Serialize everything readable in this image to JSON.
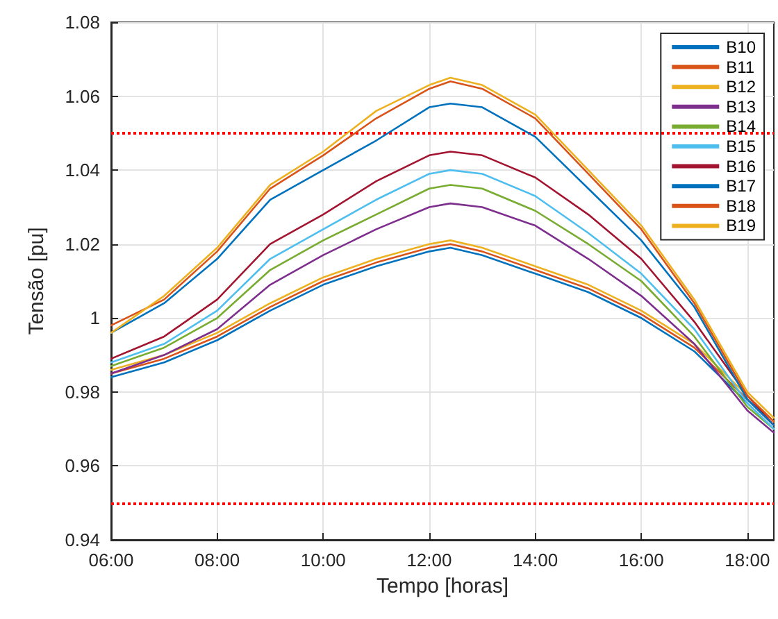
{
  "chart_data": {
    "type": "line",
    "xlabel": "Tempo [horas]",
    "ylabel": "Tensão [pu]",
    "x": [
      6,
      7,
      8,
      9,
      10,
      11,
      12,
      12.4,
      13,
      14,
      15,
      16,
      17,
      18,
      18.5
    ],
    "xlim": [
      6,
      18.5
    ],
    "xticks": [
      {
        "value": 6,
        "label": "06:00"
      },
      {
        "value": 8,
        "label": "08:00"
      },
      {
        "value": 10,
        "label": "10:00"
      },
      {
        "value": 12,
        "label": "12:00"
      },
      {
        "value": 14,
        "label": "14:00"
      },
      {
        "value": 16,
        "label": "16:00"
      },
      {
        "value": 18,
        "label": "18:00"
      }
    ],
    "ylim": [
      0.94,
      1.08
    ],
    "yticks": [
      0.94,
      0.96,
      0.98,
      1,
      1.02,
      1.04,
      1.06,
      1.08
    ],
    "series": [
      {
        "name": "B10",
        "color": "#0072bd",
        "values": [
          0.984,
          0.988,
          0.994,
          1.002,
          1.009,
          1.014,
          1.018,
          1.019,
          1.017,
          1.012,
          1.007,
          1.0,
          0.991,
          0.977,
          0.97
        ]
      },
      {
        "name": "B11",
        "color": "#d95319",
        "values": [
          0.985,
          0.989,
          0.995,
          1.003,
          1.01,
          1.015,
          1.019,
          1.02,
          1.018,
          1.013,
          1.008,
          1.001,
          0.992,
          0.978,
          0.971
        ]
      },
      {
        "name": "B12",
        "color": "#edb120",
        "values": [
          0.986,
          0.99,
          0.996,
          1.004,
          1.011,
          1.016,
          1.02,
          1.021,
          1.019,
          1.014,
          1.009,
          1.002,
          0.993,
          0.979,
          0.972
        ]
      },
      {
        "name": "B13",
        "color": "#7e2f8e",
        "values": [
          0.985,
          0.99,
          0.997,
          1.009,
          1.017,
          1.024,
          1.03,
          1.031,
          1.03,
          1.025,
          1.016,
          1.006,
          0.993,
          0.975,
          0.969
        ]
      },
      {
        "name": "B14",
        "color": "#77ac30",
        "values": [
          0.987,
          0.992,
          1,
          1.013,
          1.021,
          1.028,
          1.035,
          1.036,
          1.035,
          1.029,
          1.02,
          1.01,
          0.995,
          0.976,
          0.97
        ]
      },
      {
        "name": "B15",
        "color": "#4dbeee",
        "values": [
          0.988,
          0.993,
          1.002,
          1.016,
          1.024,
          1.032,
          1.039,
          1.04,
          1.039,
          1.033,
          1.023,
          1.012,
          0.997,
          0.977,
          0.97
        ]
      },
      {
        "name": "B16",
        "color": "#a2142f",
        "values": [
          0.989,
          0.995,
          1.005,
          1.02,
          1.028,
          1.037,
          1.044,
          1.045,
          1.044,
          1.038,
          1.028,
          1.016,
          0.999,
          0.979,
          0.971
        ]
      },
      {
        "name": "B17",
        "color": "#0072bd",
        "values": [
          0.996,
          1.004,
          1.016,
          1.032,
          1.04,
          1.048,
          1.057,
          1.058,
          1.057,
          1.049,
          1.035,
          1.021,
          1.003,
          0.978,
          0.971
        ]
      },
      {
        "name": "B18",
        "color": "#d95319",
        "values": [
          0.998,
          1.005,
          1.018,
          1.035,
          1.044,
          1.054,
          1.062,
          1.064,
          1.062,
          1.054,
          1.039,
          1.024,
          1.004,
          0.979,
          0.972
        ]
      },
      {
        "name": "B19",
        "color": "#edb120",
        "values": [
          0.996,
          1.006,
          1.019,
          1.036,
          1.045,
          1.056,
          1.063,
          1.065,
          1.063,
          1.055,
          1.04,
          1.025,
          1.005,
          0.98,
          0.973
        ]
      }
    ],
    "ref_lines": [
      {
        "axis": "y",
        "value": 1.05,
        "color": "#ff0000",
        "line_style": "dotted"
      },
      {
        "axis": "y",
        "value": 0.95,
        "color": "#ff0000",
        "line_style": "dotted"
      }
    ],
    "grid": true,
    "legend": "top right",
    "marker": "none",
    "line_style": "solid"
  }
}
